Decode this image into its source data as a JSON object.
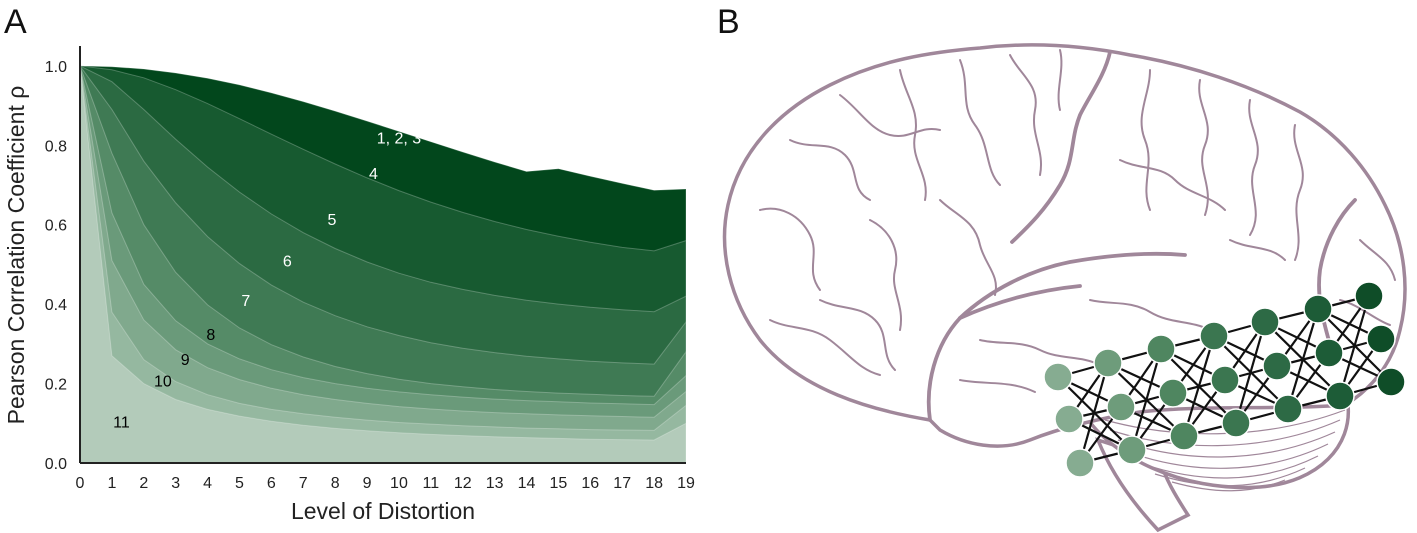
{
  "panels": {
    "a_label": "A",
    "b_label": "B"
  },
  "chart_data": {
    "type": "area",
    "title": "",
    "xlabel": "Level of Distortion",
    "ylabel": "Pearson Correlation Coefficient ρ",
    "xlim": [
      0,
      19
    ],
    "ylim": [
      0,
      1.05
    ],
    "x_ticks": [
      0,
      1,
      2,
      3,
      4,
      5,
      6,
      7,
      8,
      9,
      10,
      11,
      12,
      13,
      14,
      15,
      16,
      17,
      18,
      19
    ],
    "y_ticks": [
      0.0,
      0.2,
      0.4,
      0.6,
      0.8,
      1.0
    ],
    "y_tick_labels": [
      "0.0",
      "0.2",
      "0.4",
      "0.6",
      "0.8",
      "1.0"
    ],
    "grid": false,
    "x": [
      0,
      1,
      2,
      3,
      4,
      5,
      6,
      7,
      8,
      9,
      10,
      11,
      12,
      13,
      14,
      15,
      16,
      17,
      18,
      19
    ],
    "series": [
      {
        "label": "1, 2, 3",
        "label_at": [
          10,
          0.82
        ],
        "label_color": "#ffffff",
        "color": "#02471c",
        "values": [
          1.0,
          0.998,
          0.992,
          0.982,
          0.969,
          0.952,
          0.932,
          0.91,
          0.886,
          0.861,
          0.835,
          0.809,
          0.783,
          0.758,
          0.734,
          0.741,
          0.722,
          0.704,
          0.687,
          0.69
        ]
      },
      {
        "label": "4",
        "label_at": [
          9.2,
          0.73
        ],
        "label_color": "#ffffff",
        "color": "#175a30",
        "values": [
          1.0,
          0.99,
          0.97,
          0.94,
          0.905,
          0.867,
          0.828,
          0.79,
          0.753,
          0.718,
          0.686,
          0.657,
          0.631,
          0.608,
          0.588,
          0.571,
          0.556,
          0.543,
          0.534,
          0.56
        ]
      },
      {
        "label": "5",
        "label_at": [
          7.9,
          0.615
        ],
        "label_color": "#ffffff",
        "color": "#2b6a42",
        "values": [
          1.0,
          0.96,
          0.89,
          0.815,
          0.745,
          0.682,
          0.627,
          0.58,
          0.54,
          0.506,
          0.478,
          0.455,
          0.437,
          0.422,
          0.41,
          0.4,
          0.392,
          0.386,
          0.381,
          0.42
        ]
      },
      {
        "label": "6",
        "label_at": [
          6.5,
          0.51
        ],
        "label_color": "#ffffff",
        "color": "#3f7a54",
        "values": [
          1.0,
          0.89,
          0.76,
          0.655,
          0.57,
          0.502,
          0.448,
          0.405,
          0.371,
          0.343,
          0.321,
          0.303,
          0.289,
          0.278,
          0.269,
          0.262,
          0.256,
          0.252,
          0.249,
          0.355
        ]
      },
      {
        "label": "7",
        "label_at": [
          5.2,
          0.41
        ],
        "label_color": "#ffffff",
        "color": "#558b67",
        "values": [
          1.0,
          0.78,
          0.6,
          0.48,
          0.398,
          0.34,
          0.298,
          0.267,
          0.243,
          0.225,
          0.211,
          0.2,
          0.192,
          0.185,
          0.18,
          0.176,
          0.173,
          0.17,
          0.168,
          0.28
        ]
      },
      {
        "label": "8",
        "label_at": [
          4.1,
          0.325
        ],
        "label_color": "#000000",
        "color": "#6a9a7a",
        "values": [
          1.0,
          0.63,
          0.45,
          0.358,
          0.3,
          0.262,
          0.235,
          0.215,
          0.2,
          0.188,
          0.179,
          0.172,
          0.166,
          0.161,
          0.157,
          0.154,
          0.151,
          0.149,
          0.147,
          0.22
        ]
      },
      {
        "label": "9",
        "label_at": [
          3.3,
          0.262
        ],
        "label_color": "#000000",
        "color": "#80a98d",
        "values": [
          1.0,
          0.51,
          0.36,
          0.285,
          0.24,
          0.21,
          0.188,
          0.172,
          0.16,
          0.15,
          0.142,
          0.136,
          0.131,
          0.127,
          0.124,
          0.121,
          0.119,
          0.117,
          0.115,
          0.18
        ]
      },
      {
        "label": "10",
        "label_at": [
          2.6,
          0.208
        ],
        "label_color": "#000000",
        "color": "#95b8a0",
        "values": [
          1.0,
          0.38,
          0.26,
          0.205,
          0.172,
          0.15,
          0.135,
          0.124,
          0.115,
          0.108,
          0.102,
          0.098,
          0.094,
          0.091,
          0.088,
          0.086,
          0.084,
          0.083,
          0.082,
          0.145
        ]
      },
      {
        "label": "11",
        "label_at": [
          1.3,
          0.105
        ],
        "label_color": "#000000",
        "color": "#b3cbba",
        "values": [
          1.0,
          0.27,
          0.2,
          0.16,
          0.135,
          0.118,
          0.105,
          0.095,
          0.087,
          0.081,
          0.076,
          0.072,
          0.069,
          0.066,
          0.064,
          0.062,
          0.06,
          0.059,
          0.058,
          0.1
        ]
      }
    ]
  },
  "network": {
    "layers": [
      {
        "color": "#86ac91",
        "nodes": 3
      },
      {
        "color": "#6e9c7b",
        "nodes": 3
      },
      {
        "color": "#4f8660",
        "nodes": 3
      },
      {
        "color": "#3b7650",
        "nodes": 3
      },
      {
        "color": "#2d6a45",
        "nodes": 3
      },
      {
        "color": "#1d5c37",
        "nodes": 3
      },
      {
        "color": "#0f4d28",
        "nodes": 3
      }
    ]
  }
}
